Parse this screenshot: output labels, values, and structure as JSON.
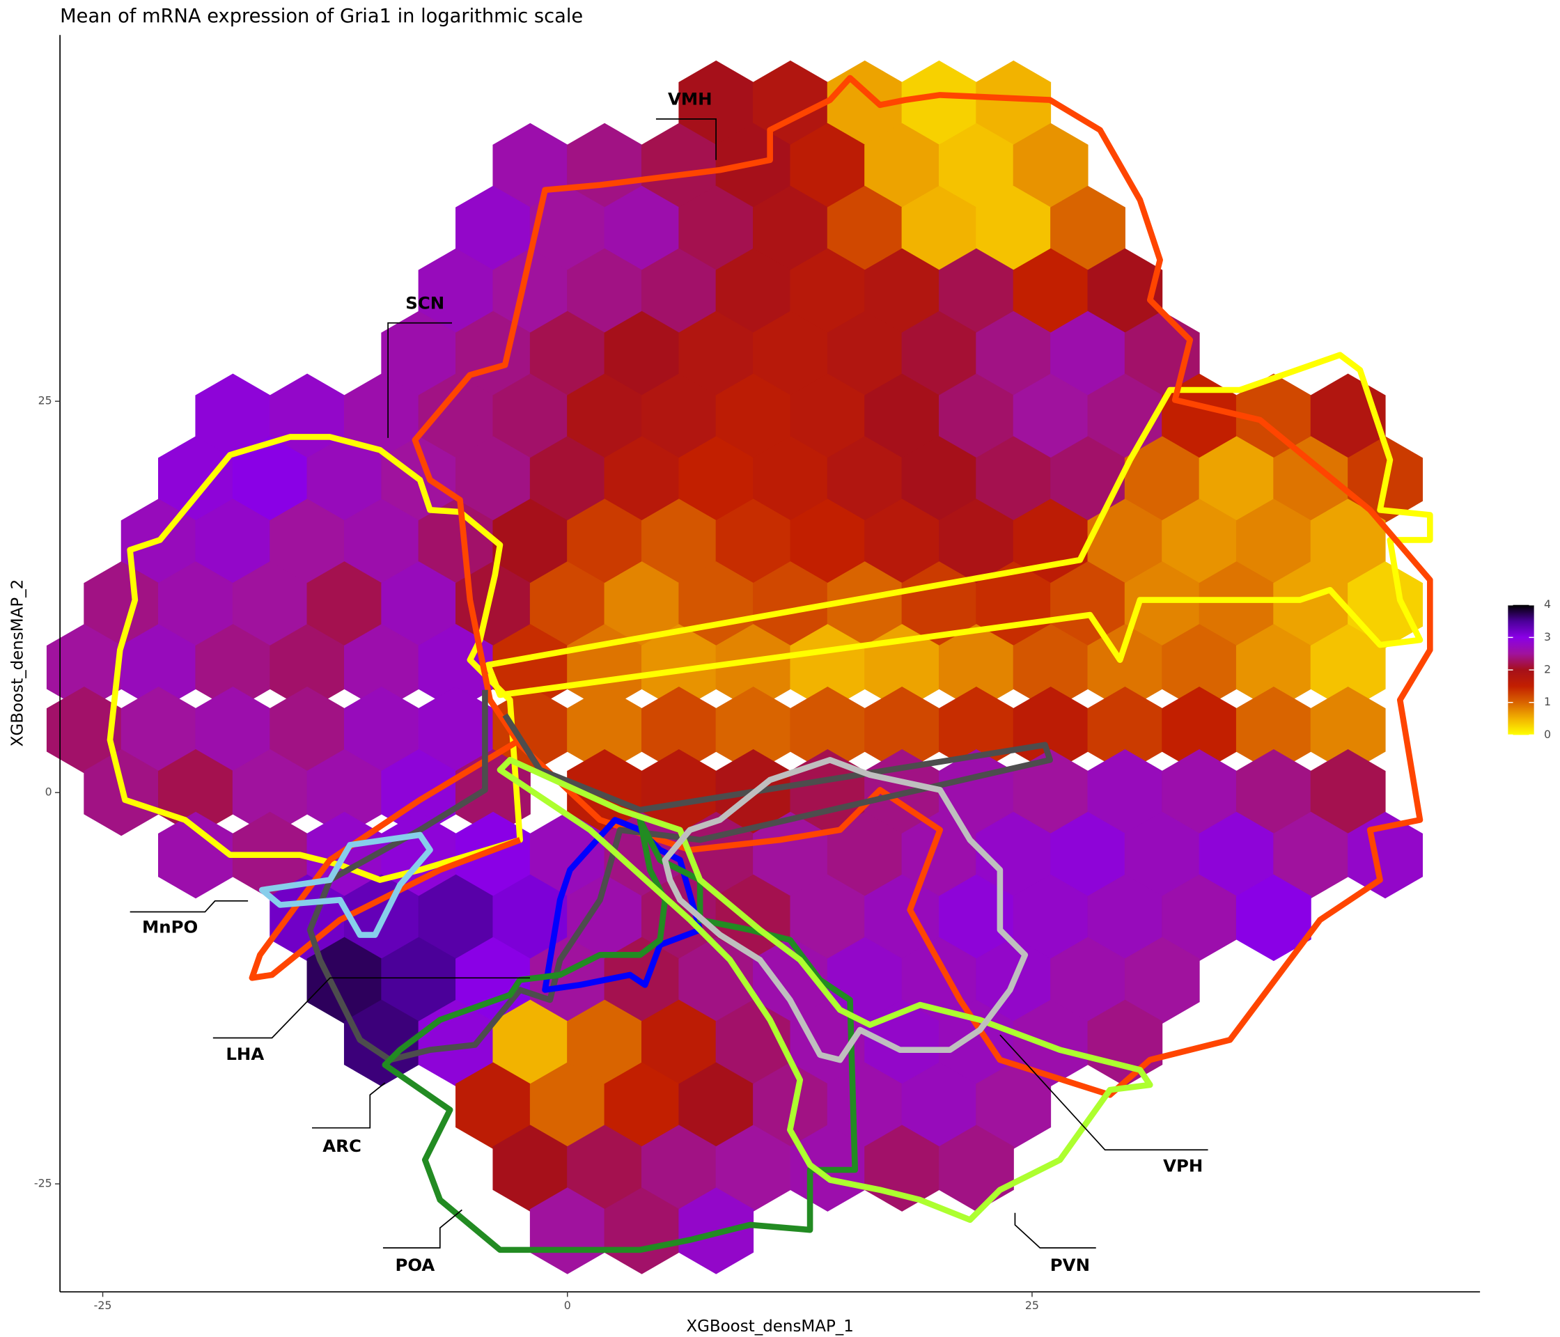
{
  "chart_data": {
    "type": "hexbin",
    "title": "Mean of mRNA expression of Gria1 in logarithmic scale",
    "x_label": "XGBoost_densMAP_1",
    "y_label": "XGBoost_densMAP_2",
    "xlim": [
      -27.3,
      49.1
    ],
    "ylim": [
      -31.9,
      48.4
    ],
    "xticks": [
      -25,
      0,
      25
    ],
    "yticks": [
      -25,
      0,
      25
    ],
    "colorbar": {
      "lim": [
        0,
        4
      ],
      "ticks": [
        0,
        1,
        2,
        3,
        4
      ],
      "colors": [
        "#ffff00",
        "#f2b300",
        "#d96400",
        "#c21f00",
        "#a6101a",
        "#a0129e",
        "#8a00e6",
        "#4b0099",
        "#000000"
      ]
    },
    "annotations": [
      "VMH",
      "SCN",
      "MnPO",
      "LHA",
      "ARC",
      "POA",
      "PVN",
      "VPH"
    ],
    "hexes": [
      {
        "y": 44,
        "x": [
          8,
          12,
          16,
          20,
          24
        ],
        "values": [
          2.0,
          1.8,
          0.6,
          0.3,
          0.5
        ]
      },
      {
        "y": 40,
        "x": [
          -2,
          2,
          6,
          10,
          14,
          18,
          22,
          26
        ],
        "values": [
          2.6,
          2.4,
          2.2,
          2.0,
          1.6,
          0.6,
          0.4,
          0.7
        ]
      },
      {
        "y": 36,
        "x": [
          -4,
          0,
          4,
          8,
          12,
          16,
          20,
          24,
          28
        ],
        "values": [
          2.8,
          2.5,
          2.6,
          2.2,
          1.9,
          1.2,
          0.5,
          0.4,
          1.0
        ]
      },
      {
        "y": 32,
        "x": [
          -6,
          -2,
          2,
          6,
          10,
          14,
          18,
          22,
          26,
          30
        ],
        "values": [
          2.7,
          2.5,
          2.4,
          2.3,
          1.9,
          1.7,
          1.8,
          2.2,
          1.5,
          2.0
        ]
      },
      {
        "y": 28,
        "x": [
          -8,
          -4,
          0,
          4,
          8,
          12,
          16,
          20,
          24,
          28,
          32
        ],
        "values": [
          2.6,
          2.4,
          2.2,
          2.0,
          1.8,
          1.7,
          1.8,
          2.1,
          2.4,
          2.6,
          2.3
        ]
      },
      {
        "y": 24,
        "x": [
          -18,
          -14,
          -10,
          -6,
          -2,
          2,
          6,
          10,
          14,
          18,
          22,
          26,
          30,
          34,
          38,
          42
        ],
        "values": [
          2.9,
          2.8,
          2.6,
          2.4,
          2.3,
          1.9,
          1.8,
          1.6,
          1.7,
          2.0,
          2.3,
          2.5,
          2.4,
          1.5,
          1.2,
          1.8
        ]
      },
      {
        "y": 20,
        "x": [
          -20,
          -16,
          -12,
          -8,
          -4,
          0,
          4,
          8,
          12,
          16,
          20,
          24,
          28,
          32,
          36,
          40,
          44
        ],
        "values": [
          2.9,
          3.0,
          2.7,
          2.5,
          2.4,
          2.1,
          1.7,
          1.5,
          1.6,
          1.8,
          2.0,
          2.2,
          2.3,
          1.0,
          0.6,
          0.9,
          1.3
        ]
      },
      {
        "y": 16,
        "x": [
          -22,
          -18,
          -14,
          -10,
          -6,
          -2,
          2,
          6,
          10,
          14,
          18,
          22,
          26,
          30,
          34,
          38,
          42
        ],
        "values": [
          2.7,
          2.8,
          2.5,
          2.6,
          2.3,
          2.0,
          1.3,
          1.1,
          1.4,
          1.5,
          1.7,
          1.9,
          1.6,
          0.9,
          0.7,
          0.8,
          0.6
        ]
      },
      {
        "y": 12,
        "x": [
          -24,
          -20,
          -16,
          -12,
          -8,
          -4,
          0,
          4,
          8,
          12,
          16,
          20,
          24,
          28,
          32,
          36,
          40,
          44
        ],
        "values": [
          2.4,
          2.6,
          2.5,
          2.2,
          2.7,
          2.1,
          1.2,
          0.8,
          1.1,
          1.2,
          1.0,
          1.3,
          1.4,
          1.2,
          0.8,
          0.9,
          0.6,
          0.3
        ]
      },
      {
        "y": 8,
        "x": [
          -26,
          -22,
          -18,
          -14,
          -10,
          -6,
          -2,
          2,
          6,
          10,
          14,
          18,
          22,
          26,
          30,
          34,
          38,
          42
        ],
        "values": [
          2.5,
          2.7,
          2.4,
          2.3,
          2.6,
          2.8,
          1.4,
          0.9,
          0.7,
          0.8,
          0.5,
          0.6,
          0.8,
          1.1,
          0.9,
          1.0,
          0.7,
          0.4
        ]
      },
      {
        "y": 4,
        "x": [
          -26,
          -22,
          -18,
          -14,
          -10,
          -6,
          -2,
          2,
          6,
          10,
          14,
          18,
          22,
          26,
          30,
          34,
          38,
          42
        ],
        "values": [
          2.3,
          2.5,
          2.6,
          2.4,
          2.7,
          2.8,
          1.3,
          0.9,
          1.2,
          1.0,
          1.1,
          1.2,
          1.4,
          1.6,
          1.3,
          1.5,
          1.0,
          0.8
        ]
      },
      {
        "y": 0,
        "x": [
          -24,
          -20,
          -16,
          -12,
          -8,
          -4,
          2,
          6,
          10,
          14,
          18,
          22,
          26,
          30,
          34,
          38,
          42
        ],
        "values": [
          2.4,
          2.2,
          2.5,
          2.6,
          2.9,
          2.3,
          1.6,
          1.7,
          1.9,
          2.2,
          2.4,
          2.6,
          2.5,
          2.7,
          2.6,
          2.4,
          2.2
        ]
      },
      {
        "y": -4,
        "x": [
          -20,
          -16,
          -12,
          -8,
          -4,
          0,
          4,
          8,
          12,
          16,
          20,
          24,
          28,
          32,
          36,
          40,
          44
        ],
        "values": [
          2.6,
          2.4,
          2.8,
          2.9,
          3.0,
          2.7,
          2.4,
          2.3,
          2.5,
          2.4,
          2.6,
          2.8,
          2.9,
          2.7,
          2.9,
          2.5,
          2.8
        ]
      },
      {
        "y": -8,
        "x": [
          -14,
          -10,
          -6,
          -2,
          2,
          6,
          10,
          14,
          18,
          22,
          26,
          30,
          34,
          38
        ],
        "values": [
          3.2,
          3.3,
          3.4,
          3.1,
          2.6,
          2.3,
          2.2,
          2.5,
          2.7,
          2.9,
          2.8,
          2.7,
          2.6,
          3.0
        ]
      },
      {
        "y": -12,
        "x": [
          -12,
          -8,
          -4,
          0,
          4,
          8,
          12,
          16,
          20,
          24,
          28,
          32
        ],
        "values": [
          3.7,
          3.5,
          3.0,
          2.5,
          2.2,
          2.4,
          2.6,
          2.8,
          2.7,
          2.8,
          2.6,
          2.5
        ]
      },
      {
        "y": -16,
        "x": [
          -10,
          -6,
          -2,
          2,
          6,
          10,
          14,
          18,
          22,
          26,
          30
        ],
        "values": [
          3.6,
          2.9,
          0.5,
          1.0,
          1.6,
          2.3,
          2.6,
          2.8,
          2.7,
          2.6,
          2.4
        ]
      },
      {
        "y": -20,
        "x": [
          -4,
          0,
          4,
          8,
          12,
          16,
          20,
          24
        ],
        "values": [
          1.6,
          1.0,
          1.5,
          2.0,
          2.4,
          2.6,
          2.7,
          2.5
        ]
      },
      {
        "y": -24,
        "x": [
          -2,
          2,
          6,
          10,
          14,
          18,
          22
        ],
        "values": [
          2.0,
          2.2,
          2.4,
          2.5,
          2.6,
          2.3,
          2.4
        ]
      },
      {
        "y": -28,
        "x": [
          0,
          4,
          8
        ],
        "values": [
          2.5,
          2.3,
          2.8
        ]
      }
    ]
  }
}
